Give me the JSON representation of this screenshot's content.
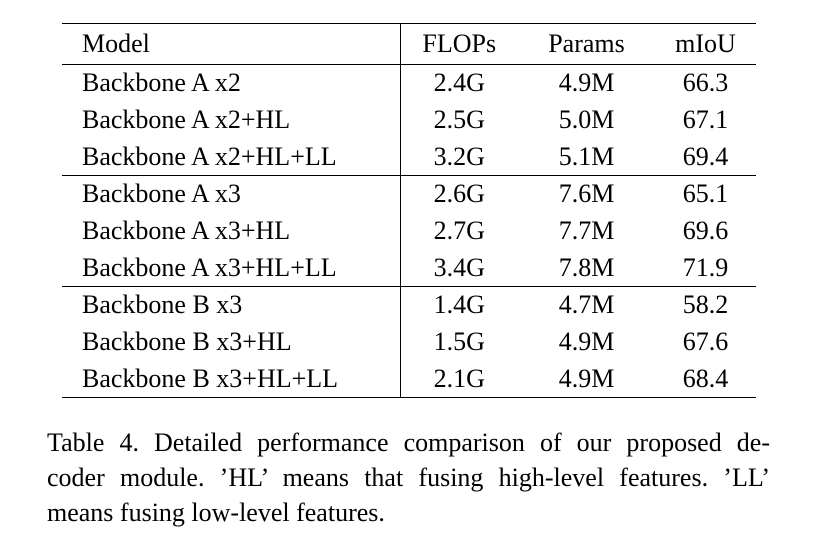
{
  "table": {
    "header": [
      "Model",
      "FLOPs",
      "Params",
      "mIoU"
    ],
    "groups": [
      [
        [
          "Backbone A x2",
          "2.4G",
          "4.9M",
          "66.3"
        ],
        [
          "Backbone A x2+HL",
          "2.5G",
          "5.0M",
          "67.1"
        ],
        [
          "Backbone A x2+HL+LL",
          "3.2G",
          "5.1M",
          "69.4"
        ]
      ],
      [
        [
          "Backbone A x3",
          "2.6G",
          "7.6M",
          "65.1"
        ],
        [
          "Backbone A x3+HL",
          "2.7G",
          "7.7M",
          "69.6"
        ],
        [
          "Backbone A x3+HL+LL",
          "3.4G",
          "7.8M",
          "71.9"
        ]
      ],
      [
        [
          "Backbone B x3",
          "1.4G",
          "4.7M",
          "58.2"
        ],
        [
          "Backbone B x3+HL",
          "1.5G",
          "4.9M",
          "67.6"
        ],
        [
          "Backbone B x3+HL+LL",
          "2.1G",
          "4.9M",
          "68.4"
        ]
      ]
    ]
  },
  "caption": {
    "lines": [
      "Table 4. Detailed performance comparison of our proposed de-",
      "coder module. ’HL’ means that fusing high-level features. ’LL’",
      "means fusing low-level features."
    ]
  }
}
